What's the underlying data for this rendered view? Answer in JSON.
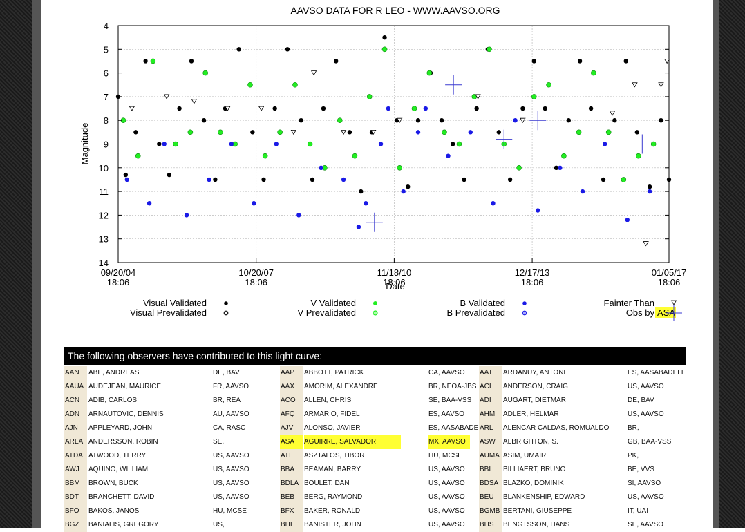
{
  "chart_data": {
    "type": "scatter",
    "title": "AAVSO DATA FOR R LEO - WWW.AAVSO.ORG",
    "xlabel": "Date",
    "ylabel": "Magnitude",
    "ylim": [
      14,
      4
    ],
    "y_inverted": true,
    "y_ticks": [
      "4",
      "5",
      "6",
      "7",
      "8",
      "9",
      "10",
      "11",
      "12",
      "13",
      "14"
    ],
    "x_ticks": [
      {
        "date": "09/20/04",
        "time": "18:06"
      },
      {
        "date": "10/20/07",
        "time": "18:06"
      },
      {
        "date": "11/18/10",
        "time": "18:06"
      },
      {
        "date": "12/17/13",
        "time": "18:06"
      },
      {
        "date": "01/05/17",
        "time": "18:06"
      }
    ],
    "grid": true,
    "legend": [
      {
        "label": "Visual Validated",
        "marker": "filled-black"
      },
      {
        "label": "Visual Prevalidated",
        "marker": "hollow-black"
      },
      {
        "label": "V Validated",
        "marker": "filled-green"
      },
      {
        "label": "V Prevalidated",
        "marker": "hollow-green"
      },
      {
        "label": "B Validated",
        "marker": "filled-blue"
      },
      {
        "label": "B Prevalidated",
        "marker": "hollow-blue"
      },
      {
        "label": "Fainter Than",
        "marker": "triangle"
      },
      {
        "label": "Obs by",
        "highlight": "ASA",
        "marker": "blue-cross"
      }
    ],
    "colors": {
      "visual": "#000000",
      "v": "#22ee22",
      "b": "#1a1ae6",
      "highlight": "#ffff33"
    },
    "series": [
      {
        "name": "Visual Validated",
        "x": [
          "2004-09-20",
          "2004-11-20",
          "2005-02-10",
          "2005-05-01",
          "2005-08-20",
          "2005-11-10",
          "2006-02-01",
          "2006-05-10",
          "2006-08-20",
          "2006-11-20",
          "2007-02-10",
          "2007-06-01",
          "2007-09-20",
          "2007-12-20",
          "2008-03-20",
          "2008-07-01",
          "2008-10-20",
          "2009-01-20",
          "2009-04-20",
          "2009-08-01",
          "2009-11-20",
          "2010-02-20",
          "2010-05-20",
          "2010-09-01",
          "2010-12-10",
          "2011-03-10",
          "2011-06-01",
          "2011-09-10",
          "2011-12-10",
          "2012-03-10",
          "2012-06-10",
          "2012-09-20",
          "2012-12-20",
          "2013-03-20",
          "2013-06-20",
          "2013-10-01",
          "2014-01-01",
          "2014-04-01",
          "2014-07-01",
          "2014-10-10",
          "2015-01-10",
          "2015-04-10",
          "2015-07-20",
          "2015-10-20",
          "2016-01-20",
          "2016-04-20",
          "2016-08-01",
          "2016-11-01",
          "2017-01-05"
        ],
        "y": [
          7.0,
          10.3,
          8.5,
          5.5,
          9.0,
          10.3,
          7.5,
          5.5,
          8.0,
          10.5,
          7.5,
          5.0,
          8.5,
          10.5,
          7.5,
          5.0,
          8.0,
          10.5,
          7.5,
          5.5,
          8.5,
          11.0,
          8.5,
          4.5,
          8.0,
          10.8,
          8.0,
          6.0,
          8.0,
          9.0,
          10.5,
          7.5,
          5.0,
          8.5,
          10.5,
          7.5,
          5.5,
          7.5,
          10.0,
          8.0,
          5.5,
          7.5,
          10.5,
          8.0,
          5.5,
          8.5,
          10.8,
          8.0,
          10.5
        ]
      },
      {
        "name": "V Validated",
        "x": [
          "2004-11-01",
          "2005-03-01",
          "2005-07-01",
          "2006-01-01",
          "2006-05-01",
          "2006-09-01",
          "2007-01-01",
          "2007-05-01",
          "2007-09-01",
          "2008-01-01",
          "2008-05-01",
          "2008-09-01",
          "2009-01-01",
          "2009-05-01",
          "2009-09-01",
          "2010-01-01",
          "2010-05-01",
          "2010-09-01",
          "2011-01-01",
          "2011-05-01",
          "2011-09-01",
          "2012-01-01",
          "2012-05-01",
          "2012-09-01",
          "2013-01-01",
          "2013-05-01",
          "2013-09-01",
          "2014-01-01",
          "2014-05-01",
          "2014-09-01",
          "2015-01-01",
          "2015-05-01",
          "2015-09-01",
          "2016-01-01",
          "2016-05-01",
          "2016-09-01"
        ],
        "y": [
          8.0,
          9.5,
          5.5,
          9.0,
          8.5,
          6.0,
          8.5,
          9.0,
          6.5,
          9.5,
          8.5,
          6.5,
          9.0,
          10.0,
          8.0,
          9.5,
          7.0,
          5.0,
          10.0,
          7.5,
          6.0,
          8.5,
          9.0,
          7.0,
          5.0,
          9.0,
          10.0,
          7.0,
          6.5,
          9.5,
          8.5,
          6.0,
          8.5,
          10.5,
          9.5,
          9.0
        ]
      },
      {
        "name": "B Validated",
        "x": [
          "2004-12-01",
          "2005-06-01",
          "2005-10-01",
          "2006-04-01",
          "2006-10-01",
          "2007-04-01",
          "2007-10-01",
          "2008-04-01",
          "2008-10-01",
          "2009-04-01",
          "2009-10-01",
          "2010-02-01",
          "2010-04-01",
          "2010-08-01",
          "2010-10-01",
          "2011-02-01",
          "2011-06-01",
          "2011-08-01",
          "2012-02-01",
          "2012-08-01",
          "2013-02-01",
          "2013-08-01",
          "2014-02-01",
          "2014-08-01",
          "2015-02-01",
          "2015-08-01",
          "2016-02-01",
          "2016-08-01"
        ],
        "y": [
          10.5,
          11.5,
          9.0,
          12.0,
          10.5,
          9.0,
          11.5,
          9.0,
          12.0,
          10.0,
          10.5,
          12.5,
          11.5,
          9.0,
          7.5,
          11.0,
          8.5,
          7.5,
          9.5,
          8.5,
          11.5,
          8.0,
          11.8,
          10.0,
          11.0,
          9.0,
          12.2,
          11.0
        ]
      },
      {
        "name": "Fainter Than",
        "x": [
          "2005-01-10",
          "2005-10-20",
          "2006-06-01",
          "2007-03-01",
          "2007-12-01",
          "2008-08-20",
          "2009-02-01",
          "2009-10-01",
          "2010-06-01",
          "2011-01-01",
          "2012-10-01",
          "2013-10-01",
          "2015-10-01",
          "2016-04-01",
          "2016-07-01",
          "2016-11-01",
          "2016-12-20"
        ],
        "y": [
          7.5,
          7.0,
          7.2,
          7.5,
          7.5,
          8.5,
          6.0,
          8.5,
          8.5,
          8.0,
          7.0,
          8.0,
          7.7,
          6.5,
          13.2,
          6.5,
          5.5
        ]
      },
      {
        "name": "Obs by ASA",
        "x": [
          "2010-06-10",
          "2012-03-15",
          "2013-05-01",
          "2014-02-01",
          "2016-06-01"
        ],
        "y": [
          12.3,
          6.5,
          8.8,
          8.0,
          9.0
        ]
      }
    ]
  },
  "observers": {
    "header": "The following observers have contributed to this light curve:",
    "rows": [
      [
        [
          "AAN",
          "ABE, ANDREAS",
          "DE, BAV"
        ],
        [
          "AAP",
          "ABBOTT, PATRICK",
          "CA, AAVSO"
        ],
        [
          "AAT",
          "ARDANUY, ANTONI",
          "ES, AASABADELL"
        ]
      ],
      [
        [
          "AAUA",
          "AUDEJEAN, MAURICE",
          "FR, AAVSO"
        ],
        [
          "AAX",
          "AMORIM, ALEXANDRE",
          "BR, NEOA-JBS"
        ],
        [
          "ACI",
          "ANDERSON, CRAIG",
          "US, AAVSO"
        ]
      ],
      [
        [
          "ACN",
          "ADIB, CARLOS",
          "BR, REA"
        ],
        [
          "ACO",
          "ALLEN, CHRIS",
          "SE, BAA-VSS"
        ],
        [
          "ADI",
          "AUGART, DIETMAR",
          "DE, BAV"
        ]
      ],
      [
        [
          "ADN",
          "ARNAUTOVIC, DENNIS",
          "AU, AAVSO"
        ],
        [
          "AFQ",
          "ARMARIO, FIDEL",
          "ES, AAVSO"
        ],
        [
          "AHM",
          "ADLER, HELMAR",
          "US, AAVSO"
        ]
      ],
      [
        [
          "AJN",
          "APPLEYARD, JOHN",
          "CA, RASC"
        ],
        [
          "AJV",
          "ALONSO, JAVIER",
          "ES, AASABADELL"
        ],
        [
          "ARL",
          "ALENCAR CALDAS, ROMUALDO",
          "BR,"
        ]
      ],
      [
        [
          "ARLA",
          "ANDERSSON, ROBIN",
          "SE,"
        ],
        [
          "ASA",
          "AGUIRRE, SALVADOR",
          "MX, AAVSO"
        ],
        [
          "ASW",
          "ALBRIGHTON, S.",
          "GB, BAA-VSS"
        ]
      ],
      [
        [
          "ATDA",
          "ATWOOD, TERRY",
          "US, AAVSO"
        ],
        [
          "ATI",
          "ASZTALOS, TIBOR",
          "HU, MCSE"
        ],
        [
          "AUMA",
          "ASIM, UMAIR",
          "PK,"
        ]
      ],
      [
        [
          "AWJ",
          "AQUINO, WILLIAM",
          "US, AAVSO"
        ],
        [
          "BBA",
          "BEAMAN, BARRY",
          "US, AAVSO"
        ],
        [
          "BBI",
          "BILLIAERT, BRUNO",
          "BE, VVS"
        ]
      ],
      [
        [
          "BBM",
          "BROWN, BUCK",
          "US, AAVSO"
        ],
        [
          "BDLA",
          "BOULET, DAN",
          "US, AAVSO"
        ],
        [
          "BDSA",
          "BLAZKO, DOMINIK",
          "SI, AAVSO"
        ]
      ],
      [
        [
          "BDT",
          "BRANCHETT, DAVID",
          "US, AAVSO"
        ],
        [
          "BEB",
          "BERG, RAYMOND",
          "US, AAVSO"
        ],
        [
          "BEU",
          "BLANKENSHIP, EDWARD",
          "US, AAVSO"
        ]
      ],
      [
        [
          "BFO",
          "BAKOS, JANOS",
          "HU, MCSE"
        ],
        [
          "BFX",
          "BAKER, RONALD",
          "US, AAVSO"
        ],
        [
          "BGMB",
          "BERTANI, GIUSEPPE",
          "IT, UAI"
        ]
      ],
      [
        [
          "BGZ",
          "BANIALIS, GREGORY",
          "US,"
        ],
        [
          "BHI",
          "BANISTER, JOHN",
          "US, AAVSO"
        ],
        [
          "BHS",
          "BENGTSSON, HANS",
          "SE, AAVSO"
        ]
      ]
    ],
    "highlight_code": "ASA"
  }
}
